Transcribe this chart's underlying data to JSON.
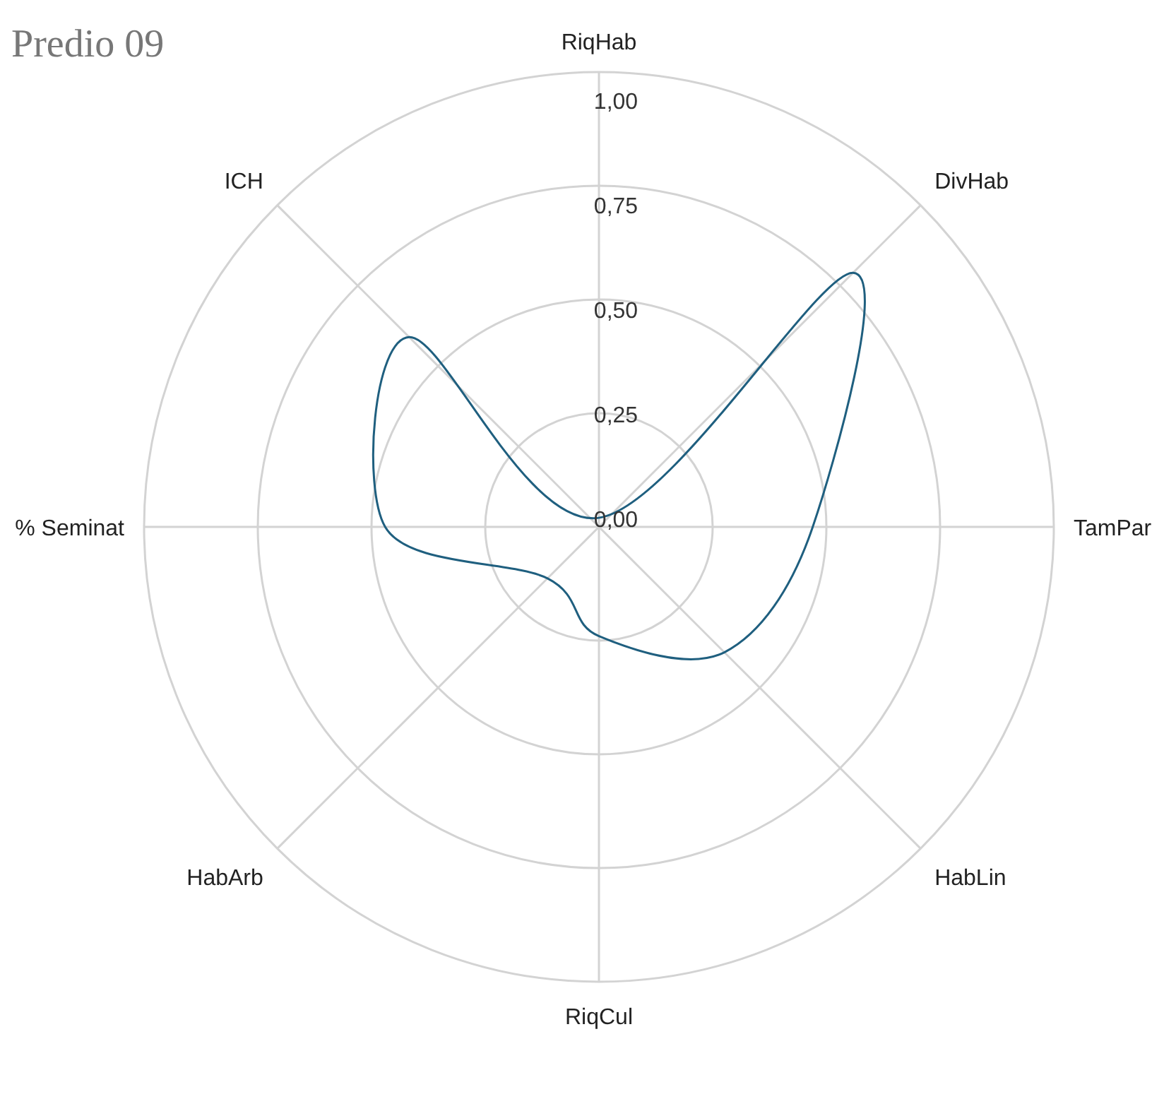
{
  "chart_data": {
    "type": "radar",
    "title": "Predio 09",
    "categories": [
      "RiqHab",
      "DivHab",
      "TamPar",
      "HabLin",
      "RiqCul",
      "HabArb",
      "% Seminat",
      "ICH"
    ],
    "series": [
      {
        "color": "#1f5f7f",
        "values": [
          0.02,
          0.79,
          0.47,
          0.39,
          0.24,
          0.16,
          0.47,
          0.59
        ]
      }
    ],
    "ylim": [
      0,
      1
    ],
    "yticks": [
      {
        "value": 0,
        "label": "0,00"
      },
      {
        "value": 0.25,
        "label": "0,25"
      },
      {
        "value": 0.5,
        "label": "0,50"
      },
      {
        "value": 0.75,
        "label": "0,75"
      },
      {
        "value": 1,
        "label": "1,00"
      }
    ],
    "grid": true
  }
}
